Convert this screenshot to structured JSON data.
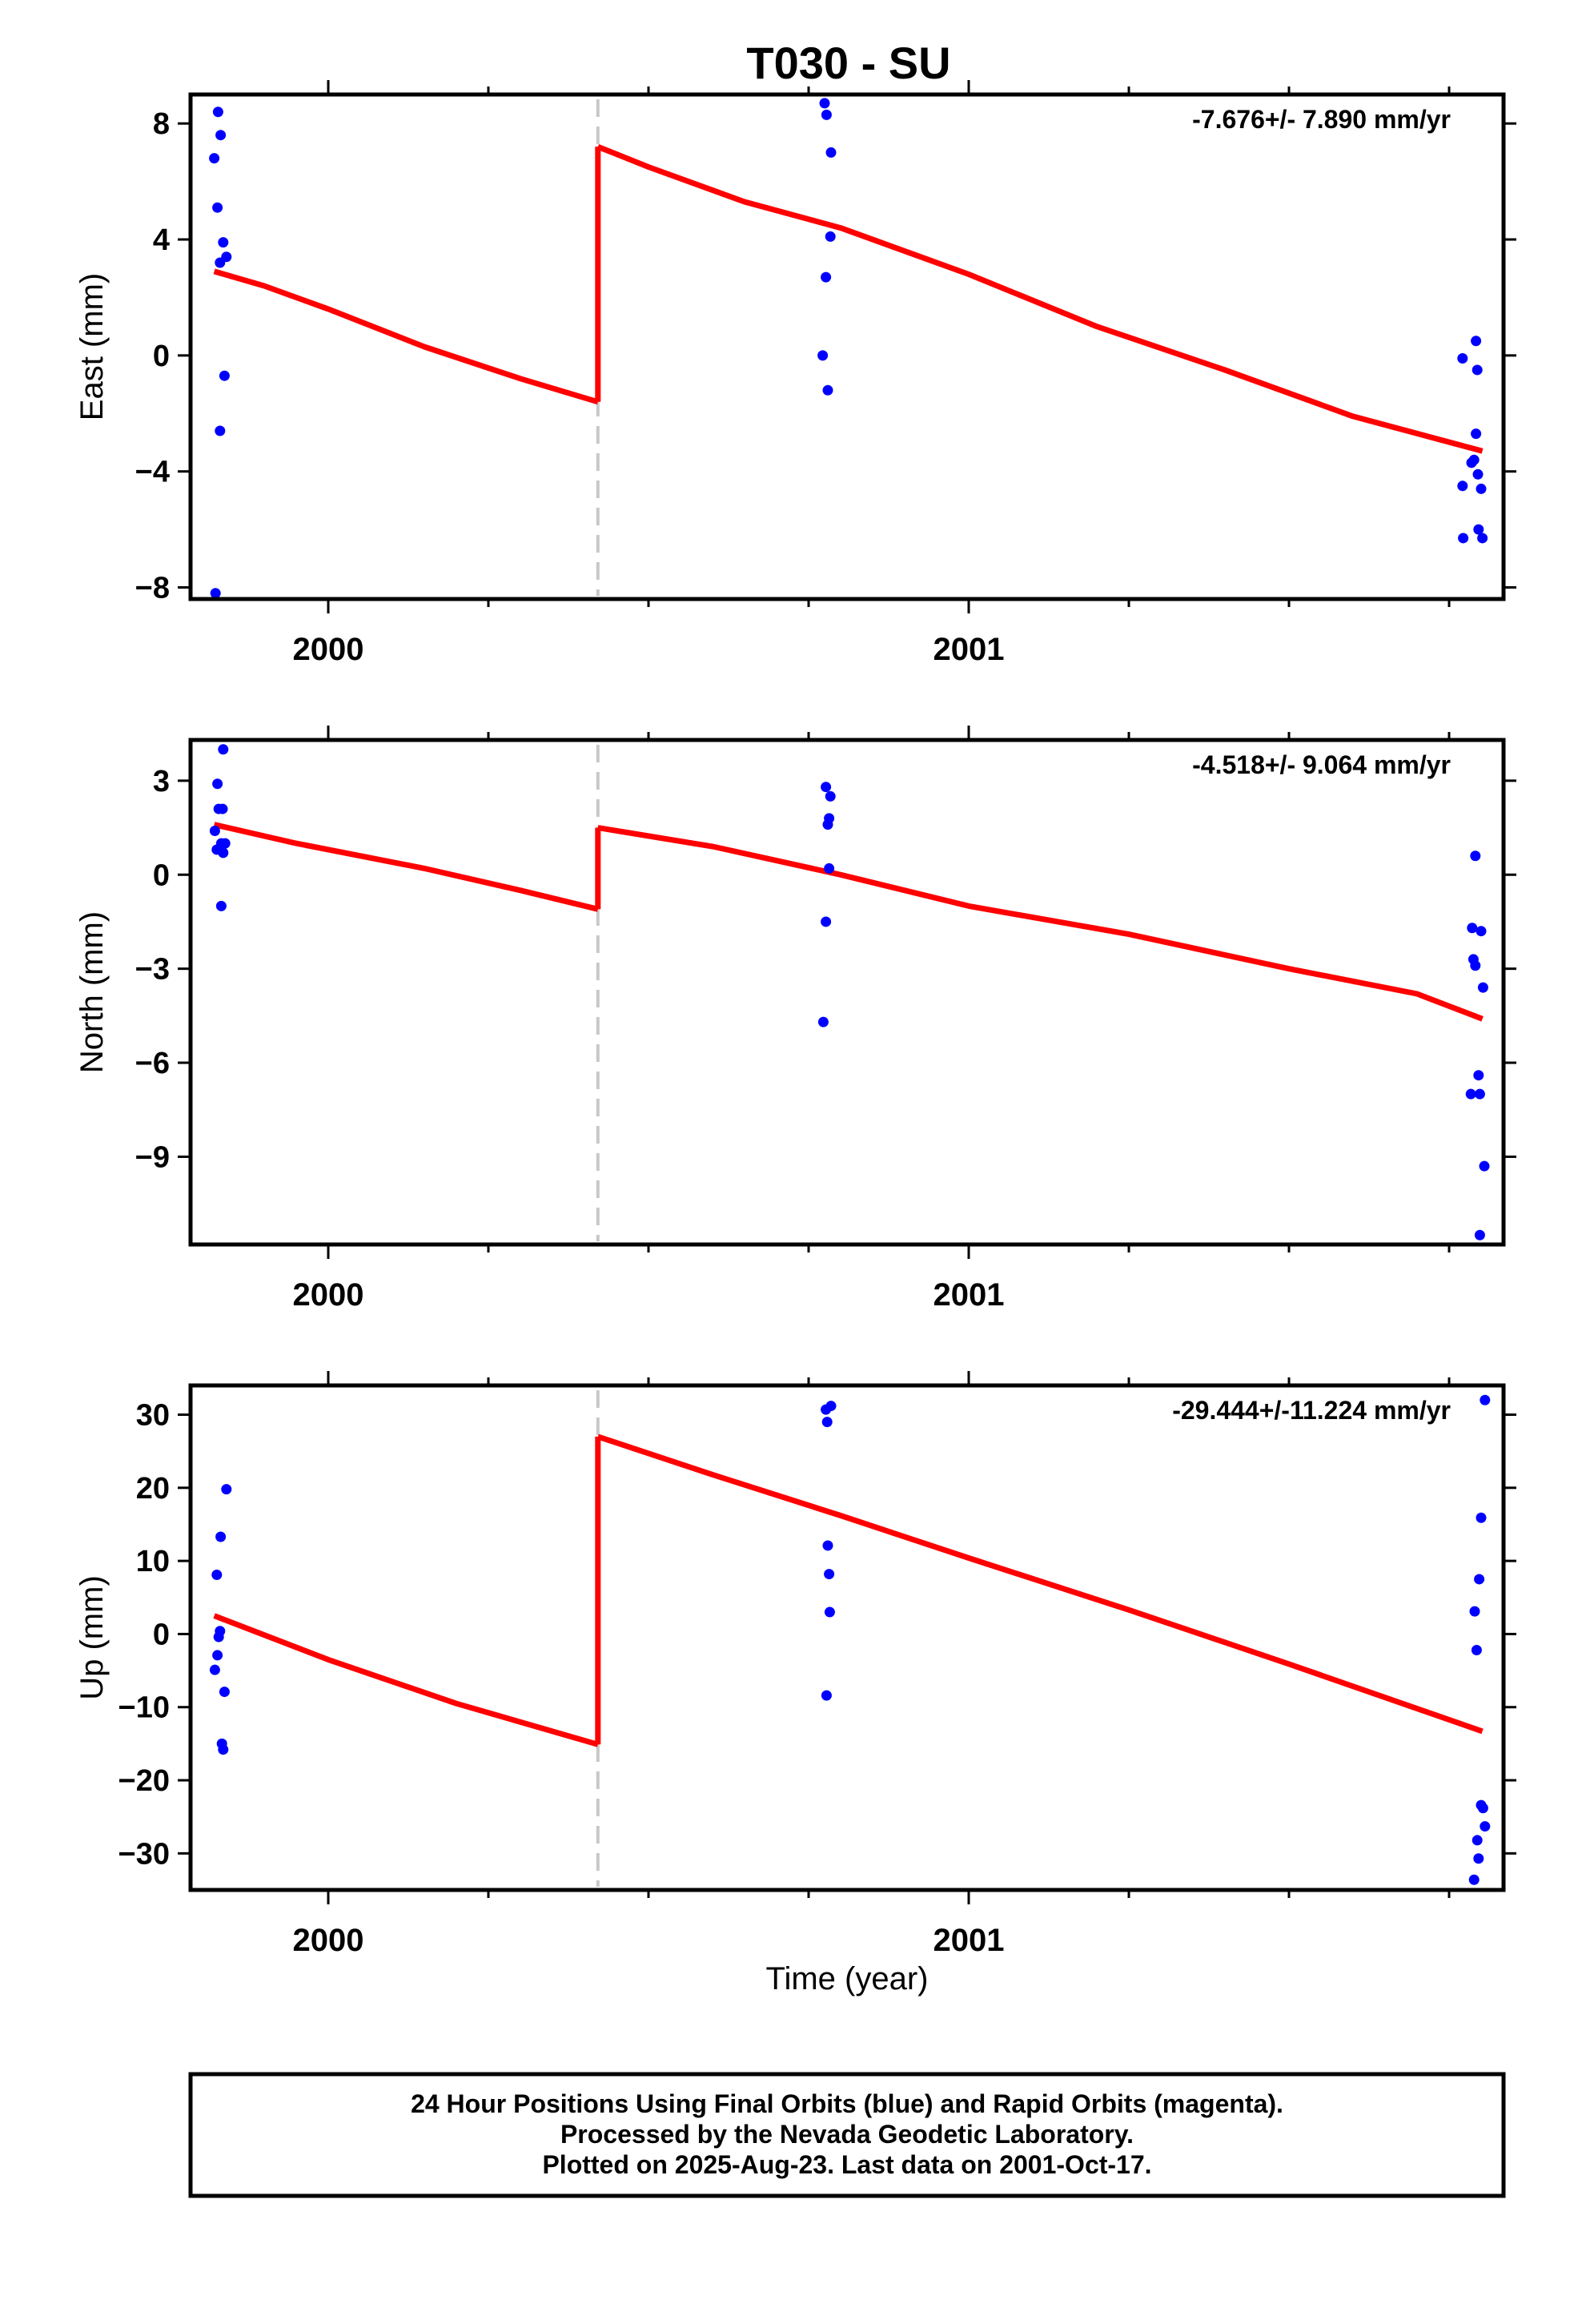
{
  "title": "T030 - SU",
  "colors": {
    "fit_line": "#ff0000",
    "final_orbit_points": "#0000ff",
    "break_line": "#c8c8c8",
    "frame": "#000000"
  },
  "footer": {
    "line1": "24 Hour Positions Using Final Orbits (blue) and Rapid Orbits (magenta).",
    "line2": "Processed by the Nevada Geodetic Laboratory.",
    "line3": "Plotted on 2025-Aug-23. Last data on 2001-Oct-17."
  },
  "x_axis": {
    "label": "Time (year)",
    "xlim": [
      1999.785,
      2001.835
    ],
    "year_ticks": [
      2000,
      2001
    ],
    "minor_ticks": [
      2000.25,
      2000.5,
      2000.75,
      2001.25,
      2001.5,
      2001.75
    ]
  },
  "chart_data": [
    {
      "type": "scatter",
      "name": "east",
      "ylabel": "East (mm)",
      "ylim": [
        -8.4,
        9.0
      ],
      "yticks": [
        -8,
        -4,
        0,
        4,
        8
      ],
      "ytick_labels": [
        "−8",
        "−4",
        "0",
        "4",
        "8"
      ],
      "rate_text": "-7.676+/- 7.890 mm/yr",
      "break_x": 2000.421,
      "points_x": [
        1999.822,
        1999.828,
        1999.832,
        1999.827,
        1999.836,
        1999.841,
        1999.831,
        1999.838,
        1999.831,
        1999.824,
        2000.775,
        2000.778,
        2000.785,
        2000.784,
        2000.777,
        2000.772,
        2000.78,
        2001.771,
        2001.792,
        2001.794,
        2001.792,
        2001.789,
        2001.785,
        2001.771,
        2001.795,
        2001.8,
        2001.796,
        2001.802,
        2001.772
      ],
      "points_y": [
        6.8,
        8.4,
        7.6,
        5.1,
        3.9,
        3.4,
        3.2,
        -0.7,
        -2.6,
        -8.2,
        8.7,
        8.3,
        7.0,
        4.1,
        2.7,
        0.0,
        -1.2,
        -0.1,
        0.5,
        -0.5,
        -2.7,
        -3.6,
        -3.7,
        -4.5,
        -4.1,
        -4.6,
        -6.0,
        -6.3,
        -6.3
      ],
      "fit_segments": [
        {
          "x": [
            1999.822,
            1999.9,
            2000.0,
            2000.15,
            2000.3,
            2000.421
          ],
          "y": [
            2.9,
            2.4,
            1.6,
            0.3,
            -0.8,
            -1.6
          ]
        },
        {
          "x": [
            2000.421,
            2000.5,
            2000.65,
            2000.8,
            2001.0,
            2001.2,
            2001.4,
            2001.6,
            2001.802
          ],
          "y": [
            7.2,
            6.5,
            5.3,
            4.4,
            2.8,
            1.0,
            -0.5,
            -2.1,
            -3.3
          ]
        }
      ]
    },
    {
      "type": "scatter",
      "name": "north",
      "ylabel": "North (mm)",
      "ylim": [
        -11.8,
        4.3
      ],
      "yticks": [
        -9,
        -6,
        -3,
        0,
        3
      ],
      "ytick_labels": [
        "−9",
        "−6",
        "−3",
        "0",
        "3"
      ],
      "rate_text": "-4.518+/- 9.064 mm/yr",
      "break_x": 2000.421,
      "points_x": [
        1999.836,
        1999.827,
        1999.829,
        1999.835,
        1999.823,
        1999.833,
        1999.826,
        1999.839,
        1999.836,
        1999.833,
        2000.777,
        2000.784,
        2000.782,
        2000.78,
        2000.782,
        2000.777,
        2000.773,
        2001.791,
        2001.786,
        2001.8,
        2001.788,
        2001.791,
        2001.803,
        2001.796,
        2001.784,
        2001.798,
        2001.805,
        2001.798
      ],
      "points_y": [
        4.0,
        2.9,
        2.1,
        2.1,
        1.4,
        1.0,
        0.8,
        1.0,
        0.7,
        -1.0,
        2.8,
        2.5,
        1.8,
        1.6,
        0.2,
        -1.5,
        -4.7,
        0.6,
        -1.7,
        -1.8,
        -2.7,
        -2.9,
        -3.6,
        -6.4,
        -7.0,
        -7.0,
        -9.3,
        -11.5
      ],
      "fit_segments": [
        {
          "x": [
            1999.822,
            1999.95,
            2000.15,
            2000.3,
            2000.421
          ],
          "y": [
            1.6,
            1.0,
            0.2,
            -0.5,
            -1.1
          ]
        },
        {
          "x": [
            2000.421,
            2000.6,
            2000.8,
            2001.0,
            2001.25,
            2001.5,
            2001.7,
            2001.802
          ],
          "y": [
            1.5,
            0.9,
            0.0,
            -1.0,
            -1.9,
            -3.0,
            -3.8,
            -4.6
          ]
        }
      ]
    },
    {
      "type": "scatter",
      "name": "up",
      "ylabel": "Up (mm)",
      "ylim": [
        -35.0,
        34.0
      ],
      "yticks": [
        -30,
        -20,
        -10,
        0,
        10,
        20,
        30
      ],
      "ytick_labels": [
        "−30",
        "−20",
        "−10",
        "0",
        "10",
        "20",
        "30"
      ],
      "rate_text": "-29.444+/-11.224 mm/yr",
      "break_x": 2000.421,
      "points_x": [
        1999.841,
        1999.832,
        1999.826,
        1999.831,
        1999.829,
        1999.827,
        1999.823,
        1999.838,
        1999.834,
        1999.836,
        2000.777,
        2000.785,
        2000.779,
        2000.78,
        2000.782,
        2000.783,
        2000.778,
        2001.806,
        2001.8,
        2001.797,
        2001.79,
        2001.793,
        2001.8,
        2001.803,
        2001.806,
        2001.794,
        2001.796,
        2001.789
      ],
      "points_y": [
        19.8,
        13.3,
        8.1,
        0.4,
        -0.4,
        -2.9,
        -4.9,
        -7.9,
        -15.0,
        -15.8,
        30.7,
        31.2,
        29.0,
        12.1,
        8.2,
        3.0,
        -8.4,
        32.0,
        15.9,
        7.5,
        3.1,
        -2.2,
        -23.4,
        -23.8,
        -26.3,
        -28.2,
        -30.7,
        -33.6
      ],
      "fit_segments": [
        {
          "x": [
            1999.822,
            2000.0,
            2000.2,
            2000.421
          ],
          "y": [
            2.5,
            -3.5,
            -9.5,
            -15.1
          ]
        },
        {
          "x": [
            2000.421,
            2000.6,
            2000.8,
            2001.0,
            2001.25,
            2001.5,
            2001.802
          ],
          "y": [
            27.0,
            21.8,
            16.2,
            10.4,
            3.3,
            -4.1,
            -13.3
          ]
        }
      ]
    }
  ]
}
